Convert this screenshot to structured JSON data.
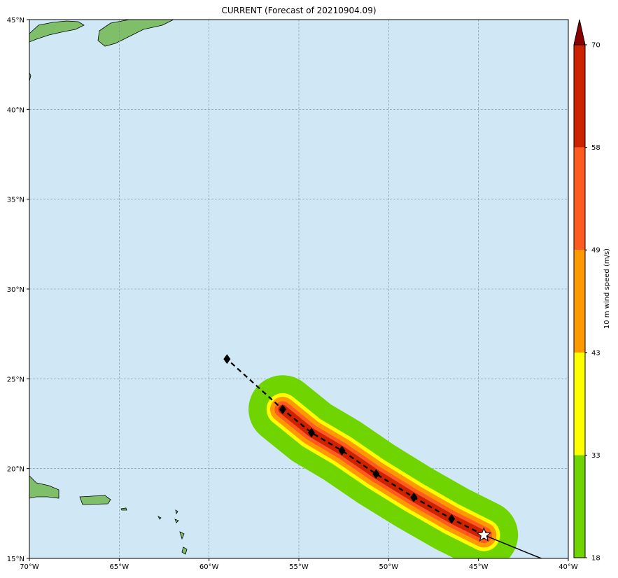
{
  "title": "CURRENT (Forecast of 20210904.09)",
  "map": {
    "lon_range": [
      -70,
      -40
    ],
    "lat_range": [
      15,
      45
    ],
    "lon_ticks": [
      {
        "value": -70,
        "label": "70°W"
      },
      {
        "value": -65,
        "label": "65°W"
      },
      {
        "value": -60,
        "label": "60°W"
      },
      {
        "value": -55,
        "label": "55°W"
      },
      {
        "value": -50,
        "label": "50°W"
      },
      {
        "value": -45,
        "label": "45°W"
      },
      {
        "value": -40,
        "label": "40°W"
      }
    ],
    "lat_ticks": [
      {
        "value": 15,
        "label": "15°N"
      },
      {
        "value": 20,
        "label": "20°N"
      },
      {
        "value": 25,
        "label": "25°N"
      },
      {
        "value": 30,
        "label": "30°N"
      },
      {
        "value": 35,
        "label": "35°N"
      },
      {
        "value": 40,
        "label": "40°N"
      },
      {
        "value": 45,
        "label": "45°N"
      }
    ],
    "gridlines": true,
    "ocean_color": "#d0e8f6",
    "land_color": "#7fbf6a"
  },
  "track": {
    "current_position": {
      "lon": -44.7,
      "lat": 16.3
    },
    "past_track": [
      {
        "lon": -44.7,
        "lat": 16.3
      },
      {
        "lon": -42.5,
        "lat": 15.4
      },
      {
        "lon": -41.5,
        "lat": 15.0
      }
    ],
    "forecast_points": [
      {
        "lon": -44.7,
        "lat": 16.3
      },
      {
        "lon": -46.5,
        "lat": 17.2
      },
      {
        "lon": -48.6,
        "lat": 18.4
      },
      {
        "lon": -50.7,
        "lat": 19.7
      },
      {
        "lon": -52.6,
        "lat": 21.0
      },
      {
        "lon": -54.3,
        "lat": 22.0
      },
      {
        "lon": -55.9,
        "lat": 23.3
      },
      {
        "lon": -59.0,
        "lat": 26.1
      }
    ]
  },
  "wind_swath": {
    "levels": [
      {
        "threshold": 18,
        "color": "#6fd400",
        "halfwidth_deg": 1.9
      },
      {
        "threshold": 33,
        "color": "#ffff00",
        "halfwidth_deg": 0.9
      },
      {
        "threshold": 43,
        "color": "#ff9900",
        "halfwidth_deg": 0.7
      },
      {
        "threshold": 49,
        "color": "#ff5a1f",
        "halfwidth_deg": 0.45
      },
      {
        "threshold": 58,
        "color": "#cc2200",
        "halfwidth_deg": 0.25
      }
    ],
    "segments": [
      {
        "start_index": 0,
        "end_index": 6
      }
    ]
  },
  "colorbar": {
    "label": "10 m wind speed (m/s)",
    "boundaries": [
      18,
      33,
      43,
      49,
      58,
      70
    ],
    "tick_labels": [
      "18",
      "33",
      "43",
      "49",
      "58",
      "70"
    ],
    "colors": [
      "#6fd400",
      "#ffff00",
      "#ff9900",
      "#ff5a1f",
      "#cc2200"
    ],
    "extend_color": "#8b0000"
  }
}
